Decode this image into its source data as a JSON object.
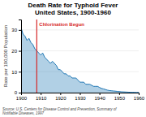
{
  "chart_data": {
    "type": "area",
    "title": "Death Rate for Typhoid Fever\nUnited States, 1900-1960",
    "y_label": "Rate per 100,000 Population",
    "source": "Source: U.S. Centers for Disease Control and Prevention, Summary of\nNotifiable Diseases, 1997",
    "annotations": [
      {
        "x": 1908,
        "text": "Chlorination Begun"
      }
    ],
    "x": [
      1900,
      1901,
      1902,
      1903,
      1904,
      1905,
      1906,
      1907,
      1908,
      1909,
      1910,
      1911,
      1912,
      1913,
      1914,
      1915,
      1916,
      1917,
      1918,
      1919,
      1920,
      1921,
      1922,
      1923,
      1924,
      1925,
      1926,
      1927,
      1928,
      1929,
      1930,
      1931,
      1932,
      1933,
      1934,
      1935,
      1936,
      1937,
      1938,
      1939,
      1940,
      1941,
      1942,
      1943,
      1944,
      1945,
      1946,
      1947,
      1948,
      1949,
      1950,
      1951,
      1952,
      1953,
      1954,
      1955,
      1956,
      1957,
      1958,
      1959,
      1960
    ],
    "values": [
      31,
      28,
      27,
      25,
      26,
      24,
      23,
      21,
      20,
      19,
      18,
      19,
      17,
      16,
      15,
      14,
      15,
      14,
      13,
      11,
      11,
      10,
      9,
      9,
      8,
      8,
      7,
      7,
      7,
      6,
      5,
      5,
      5,
      4,
      4,
      4,
      3.5,
      3,
      3,
      3,
      2.5,
      2,
      1.8,
      1.5,
      1.2,
      1.0,
      0.9,
      0.8,
      0.7,
      0.6,
      0.5,
      0.4,
      0.35,
      0.3,
      0.25,
      0.2,
      0.15,
      0.15,
      0.1,
      0.1,
      0.1
    ],
    "xlim": [
      1900,
      1960
    ],
    "ylim": [
      0,
      35
    ],
    "xticks": [
      1900,
      1910,
      1920,
      1930,
      1940,
      1950,
      1960
    ],
    "yticks": [
      0,
      10,
      20,
      30
    ],
    "grid": true
  }
}
